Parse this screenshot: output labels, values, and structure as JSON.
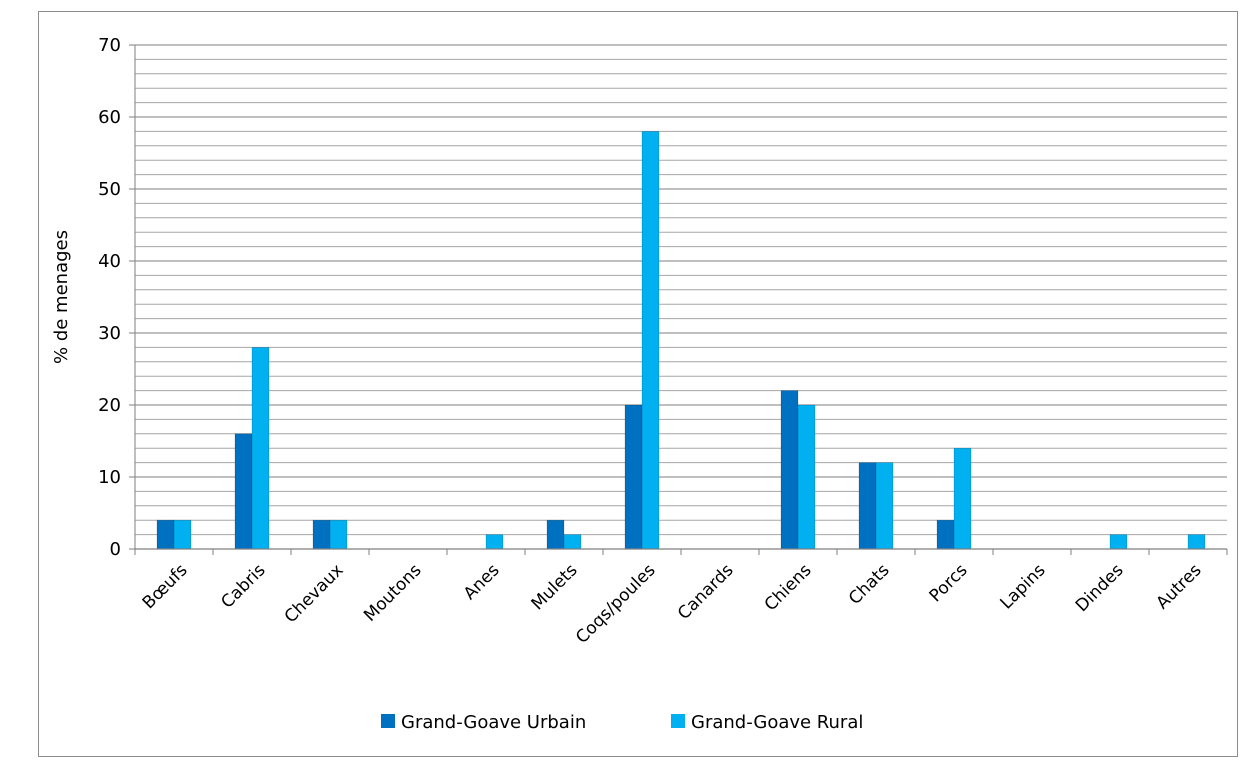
{
  "chart_data": {
    "type": "bar",
    "title": "",
    "xlabel": "",
    "ylabel": "% de menages",
    "ylim": [
      0,
      70
    ],
    "y_ticks": [
      0,
      10,
      20,
      30,
      40,
      50,
      60,
      70
    ],
    "minor_grid_step": 2,
    "grid": true,
    "legend_position": "bottom",
    "categories": [
      "Bœufs",
      "Cabris",
      "Chevaux",
      "Moutons",
      "Anes",
      "Mulets",
      "Coqs/poules",
      "Canards",
      "Chiens",
      "Chats",
      "Porcs",
      "Lapins",
      "Dindes",
      "Autres"
    ],
    "series": [
      {
        "name": "Grand-Goave Urbain",
        "color": "#0070C0",
        "values": [
          4,
          16,
          4,
          0,
          0,
          4,
          20,
          0,
          22,
          12,
          4,
          0,
          0,
          0
        ]
      },
      {
        "name": "Grand-Goave Rural",
        "color": "#00B0F0",
        "values": [
          4,
          28,
          4,
          0,
          2,
          2,
          58,
          0,
          20,
          12,
          14,
          0,
          2,
          2
        ]
      }
    ]
  }
}
